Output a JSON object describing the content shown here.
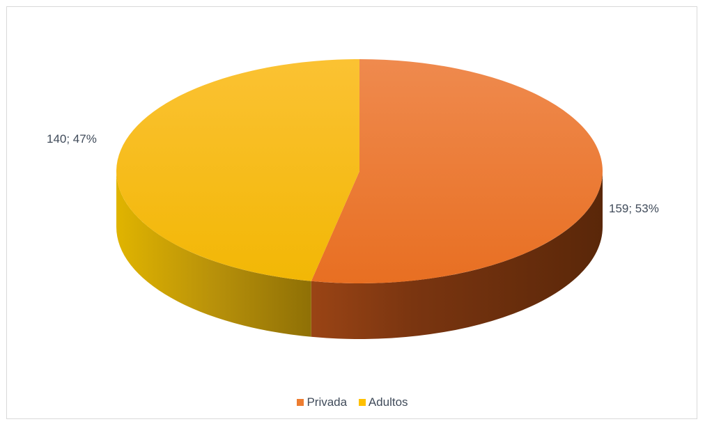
{
  "chart_data": {
    "type": "pie",
    "categories": [
      "Privada",
      "Adultos"
    ],
    "values": [
      159,
      140
    ],
    "percents": [
      "53%",
      "47%"
    ],
    "data_labels": [
      "159; 53%",
      "140; 47%"
    ],
    "colors": [
      "#ed7d31",
      "#ffc000"
    ],
    "style": "3d",
    "legend_position": "bottom"
  }
}
